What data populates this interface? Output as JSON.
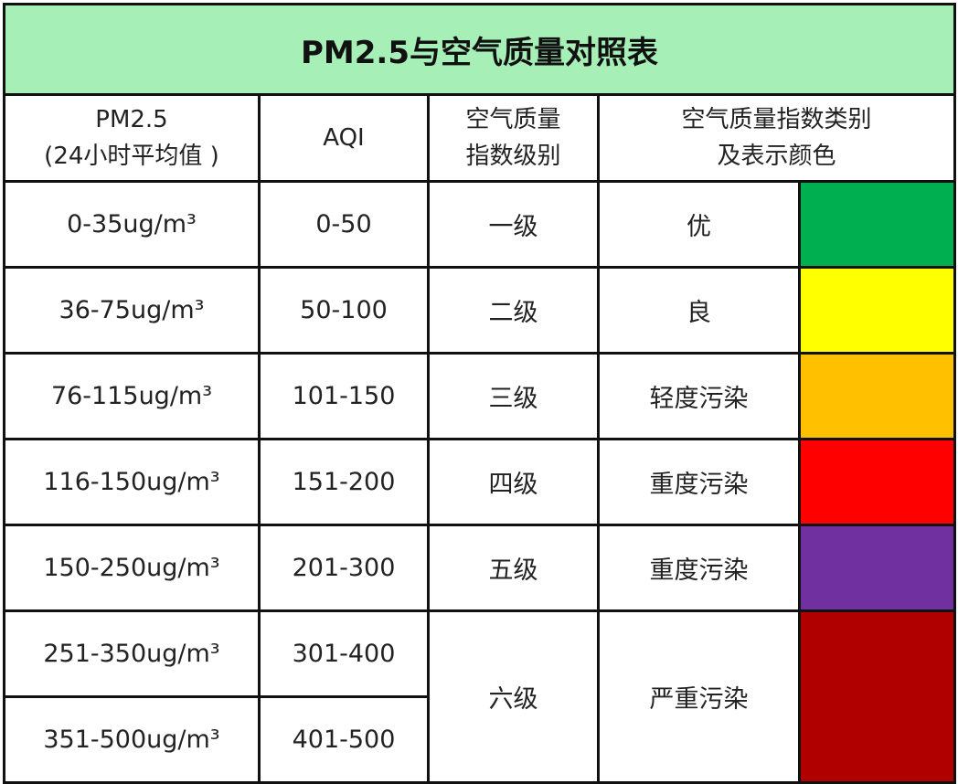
{
  "title": "PM2.5与空气质量对照表",
  "title_bg": "#a6f0b8",
  "headers": {
    "pm25_line1": "PM2.5",
    "pm25_line2": "(24小时平均值 )",
    "aqi": "AQI",
    "level_line1": "空气质量",
    "level_line2": "指数级别",
    "category_line1": "空气质量指数类别",
    "category_line2": "及表示颜色"
  },
  "rows": [
    {
      "pm25": "0-35ug/m³",
      "aqi": "0-50",
      "level": "一级",
      "category": "优",
      "color": "#00b050"
    },
    {
      "pm25": "36-75ug/m³",
      "aqi": "50-100",
      "level": "二级",
      "category": "良",
      "color": "#ffff00"
    },
    {
      "pm25": "76-115ug/m³",
      "aqi": "101-150",
      "level": "三级",
      "category": "轻度污染",
      "color": "#ffc000"
    },
    {
      "pm25": "116-150ug/m³",
      "aqi": "151-200",
      "level": "四级",
      "category": "重度污染",
      "color": "#ff0000"
    },
    {
      "pm25": "150-250ug/m³",
      "aqi": "201-300",
      "level": "五级",
      "category": "重度污染",
      "color": "#7030a0"
    },
    {
      "pm25": "251-350ug/m³",
      "aqi": "301-400",
      "level": "六级",
      "category": "严重污染",
      "color": "#b00000"
    },
    {
      "pm25": "351-500ug/m³",
      "aqi": "401-500"
    }
  ]
}
